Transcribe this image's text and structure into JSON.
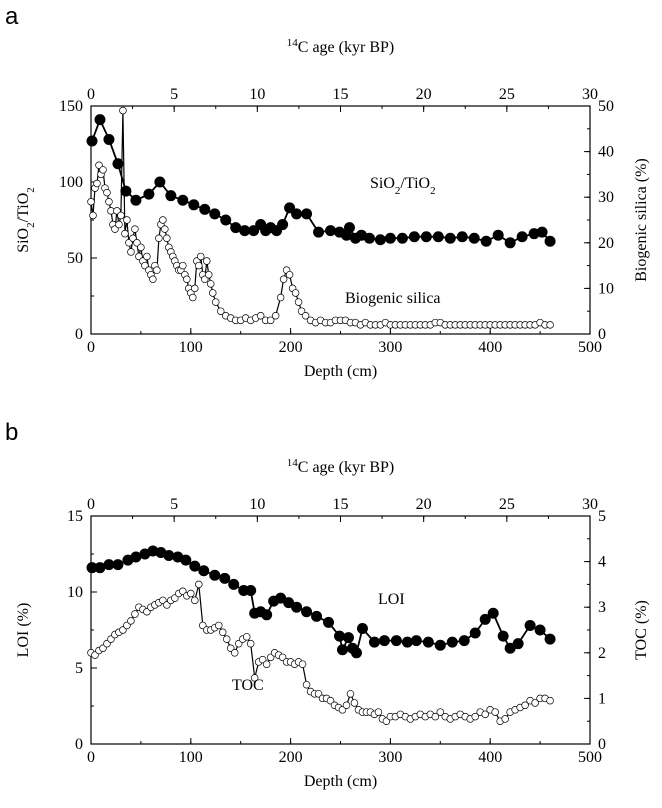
{
  "chart_data": [
    {
      "panel": "a",
      "type": "line",
      "xlabel": "Depth (cm)",
      "xlim": [
        0,
        500
      ],
      "x_ticks": [
        0,
        100,
        200,
        300,
        400,
        500
      ],
      "top_xlabel_sup": "14",
      "top_xlabel_main": "C age (kyr BP)",
      "top_xlim": [
        0,
        30
      ],
      "top_ticks": [
        0,
        5,
        10,
        15,
        20,
        25,
        30
      ],
      "ylabel_left_parts": [
        "SiO",
        "2",
        "/TiO",
        "2"
      ],
      "ylim_left": [
        0,
        150
      ],
      "y_left_ticks": [
        0,
        50,
        100,
        150
      ],
      "ylabel_right": "Biogenic silica (%)",
      "ylim_right": [
        0,
        50
      ],
      "y_right_ticks": [
        0,
        10,
        20,
        30,
        40,
        50
      ],
      "grid": false,
      "series": [
        {
          "name_parts": [
            "SiO",
            "2",
            "/TiO",
            "2"
          ],
          "axis": "left",
          "marker": "filled",
          "x": [
            1,
            9,
            18,
            27,
            35,
            45,
            58,
            69,
            80,
            92,
            103,
            114,
            124,
            135,
            145,
            154,
            163,
            170,
            175,
            180,
            186,
            192,
            199,
            206,
            216,
            228,
            240,
            249,
            256,
            259,
            265,
            271,
            279,
            290,
            300,
            312,
            324,
            336,
            348,
            360,
            372,
            384,
            396,
            408,
            420,
            432,
            444,
            452,
            460
          ],
          "y": [
            127,
            141,
            128,
            112,
            94,
            88,
            92,
            100,
            91,
            88,
            85,
            82,
            79,
            75,
            70,
            68,
            68,
            72,
            68,
            70,
            68,
            72,
            83,
            79,
            79,
            67,
            68,
            67,
            65,
            70,
            63,
            65,
            63,
            62,
            63,
            63,
            64,
            64,
            64,
            63,
            64,
            63,
            61,
            65,
            60,
            64,
            66,
            67,
            61
          ]
        },
        {
          "name": "Biogenic silica",
          "axis": "right",
          "marker": "open",
          "x": [
            0,
            2,
            4,
            6,
            8,
            10,
            12,
            14,
            16,
            18,
            20,
            22,
            24,
            26,
            28,
            30,
            32,
            34,
            36,
            38,
            40,
            42,
            44,
            46,
            48,
            50,
            52,
            54,
            56,
            58,
            60,
            62,
            64,
            66,
            68,
            70,
            72,
            74,
            76,
            78,
            80,
            82,
            84,
            86,
            88,
            90,
            92,
            94,
            96,
            98,
            100,
            102,
            104,
            106,
            108,
            110,
            112,
            114,
            116,
            118,
            120,
            122,
            125,
            130,
            135,
            140,
            145,
            150,
            155,
            160,
            165,
            170,
            175,
            180,
            185,
            190,
            193,
            196,
            199,
            202,
            205,
            208,
            211,
            215,
            220,
            225,
            230,
            235,
            240,
            245,
            250,
            255,
            260,
            265,
            270,
            275,
            280,
            285,
            290,
            295,
            300,
            305,
            310,
            315,
            320,
            325,
            330,
            335,
            340,
            345,
            350,
            355,
            360,
            365,
            370,
            375,
            380,
            385,
            390,
            395,
            400,
            405,
            410,
            415,
            420,
            425,
            430,
            435,
            440,
            445,
            450,
            455,
            460
          ],
          "y": [
            29,
            26,
            32,
            33,
            37,
            35,
            36,
            32,
            31,
            29,
            27,
            24,
            23,
            27,
            24,
            26,
            49,
            22,
            25,
            20,
            18,
            21,
            23,
            20,
            17,
            19,
            16,
            15,
            17,
            14,
            13,
            12,
            15,
            14,
            21,
            24,
            25,
            23,
            21,
            19,
            18,
            17,
            16,
            15,
            14,
            14,
            15,
            13,
            12,
            10,
            9,
            8,
            10,
            16,
            15,
            17,
            13,
            12,
            16,
            13,
            11,
            9,
            7,
            5,
            4,
            3.5,
            3,
            3,
            3.5,
            3,
            3.5,
            4,
            3,
            3,
            4,
            8,
            12,
            14,
            13,
            10,
            9,
            7,
            5,
            4,
            3,
            2.5,
            3,
            2.5,
            2.5,
            3,
            3,
            3,
            2.5,
            2.5,
            2,
            2.5,
            2,
            2,
            2,
            2.5,
            2,
            2,
            2,
            2,
            2,
            2,
            2,
            2,
            2,
            2.5,
            2.5,
            2,
            2,
            2,
            2,
            2,
            2,
            2,
            2,
            2,
            2,
            2,
            2,
            2,
            2,
            2,
            2,
            2,
            2,
            2,
            2.5,
            2,
            2
          ]
        }
      ]
    },
    {
      "panel": "b",
      "type": "line",
      "xlabel": "Depth (cm)",
      "xlim": [
        0,
        500
      ],
      "x_ticks": [
        0,
        100,
        200,
        300,
        400,
        500
      ],
      "top_xlabel_sup": "14",
      "top_xlabel_main": "C age (kyr BP)",
      "top_xlim": [
        0,
        30
      ],
      "top_ticks": [
        0,
        5,
        10,
        15,
        20,
        25,
        30
      ],
      "ylabel_left": "LOI (%)",
      "ylim_left": [
        0,
        15
      ],
      "y_left_ticks": [
        0,
        5,
        10,
        15
      ],
      "ylabel_right": "TOC (%)",
      "ylim_right": [
        0,
        5
      ],
      "y_right_ticks": [
        0,
        1,
        2,
        3,
        4,
        5
      ],
      "grid": false,
      "series": [
        {
          "name": "LOI",
          "axis": "left",
          "marker": "filled",
          "x": [
            1,
            9,
            18,
            27,
            37,
            45,
            54,
            62,
            70,
            78,
            87,
            95,
            104,
            113,
            124,
            134,
            143,
            153,
            160,
            164,
            170,
            176,
            183,
            190,
            198,
            206,
            216,
            226,
            238,
            249,
            252,
            258,
            262,
            266,
            272,
            284,
            294,
            306,
            317,
            326,
            338,
            350,
            362,
            374,
            385,
            395,
            403,
            413,
            420,
            428,
            440,
            450,
            460
          ],
          "y": [
            11.6,
            11.6,
            11.8,
            11.8,
            12.1,
            12.3,
            12.5,
            12.7,
            12.6,
            12.4,
            12.3,
            12.1,
            11.7,
            11.4,
            11.1,
            10.9,
            10.5,
            10.1,
            10.1,
            8.6,
            8.7,
            8.5,
            9.4,
            9.6,
            9.3,
            9.0,
            8.7,
            8.4,
            8.0,
            7.1,
            6.2,
            7.0,
            6.3,
            6.0,
            7.6,
            6.7,
            6.8,
            6.8,
            6.7,
            6.8,
            6.7,
            6.5,
            6.7,
            6.8,
            7.3,
            8.2,
            8.6,
            7.1,
            6.3,
            6.6,
            7.8,
            7.5,
            6.9
          ]
        },
        {
          "name": "TOC",
          "axis": "right",
          "marker": "open",
          "x": [
            0,
            4,
            8,
            12,
            16,
            20,
            24,
            28,
            32,
            36,
            40,
            44,
            48,
            52,
            56,
            60,
            64,
            68,
            72,
            76,
            80,
            84,
            88,
            92,
            96,
            100,
            104,
            108,
            112,
            116,
            120,
            124,
            128,
            132,
            136,
            140,
            144,
            148,
            152,
            156,
            160,
            164,
            168,
            172,
            176,
            180,
            184,
            188,
            192,
            196,
            200,
            204,
            208,
            212,
            216,
            220,
            224,
            228,
            232,
            236,
            240,
            244,
            248,
            252,
            256,
            260,
            264,
            268,
            272,
            276,
            280,
            284,
            288,
            292,
            296,
            300,
            305,
            310,
            315,
            320,
            325,
            330,
            335,
            340,
            345,
            350,
            355,
            360,
            365,
            370,
            375,
            380,
            385,
            390,
            395,
            400,
            405,
            410,
            415,
            420,
            425,
            430,
            435,
            440,
            445,
            450,
            455,
            460
          ],
          "y": [
            2.0,
            1.95,
            2.05,
            2.1,
            2.2,
            2.3,
            2.4,
            2.45,
            2.5,
            2.6,
            2.7,
            2.85,
            3.0,
            2.95,
            2.9,
            3.0,
            3.05,
            3.1,
            3.15,
            3.05,
            3.15,
            3.2,
            3.3,
            3.35,
            3.25,
            3.3,
            3.15,
            3.5,
            2.6,
            2.5,
            2.5,
            2.55,
            2.6,
            2.45,
            2.3,
            2.1,
            2.0,
            2.2,
            2.3,
            2.35,
            2.2,
            1.45,
            1.8,
            1.85,
            1.75,
            1.9,
            2.0,
            1.95,
            1.9,
            1.8,
            1.8,
            1.75,
            1.8,
            1.75,
            1.3,
            1.15,
            1.1,
            1.1,
            1.0,
            1.0,
            0.95,
            0.85,
            0.8,
            0.75,
            0.85,
            1.1,
            0.9,
            0.75,
            0.7,
            0.7,
            0.7,
            0.65,
            0.7,
            0.55,
            0.5,
            0.6,
            0.6,
            0.65,
            0.6,
            0.55,
            0.6,
            0.65,
            0.6,
            0.65,
            0.6,
            0.7,
            0.6,
            0.55,
            0.6,
            0.65,
            0.6,
            0.55,
            0.6,
            0.7,
            0.65,
            0.75,
            0.7,
            0.5,
            0.55,
            0.7,
            0.75,
            0.8,
            0.85,
            0.95,
            0.9,
            1.0,
            1.0,
            0.95
          ]
        }
      ]
    }
  ]
}
